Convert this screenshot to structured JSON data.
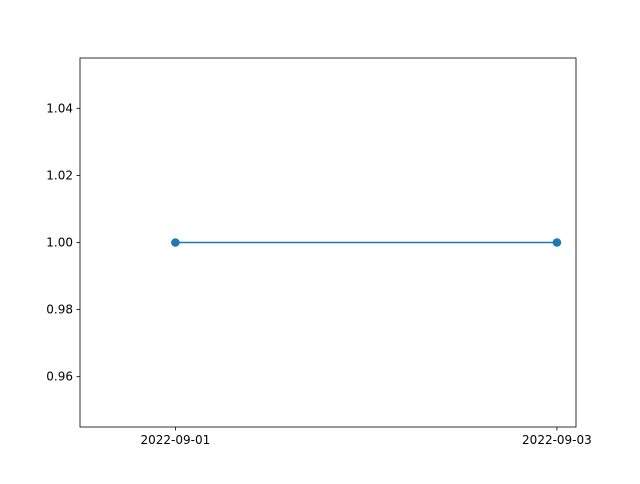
{
  "chart_data": {
    "type": "line",
    "title": "",
    "xlabel": "",
    "ylabel": "",
    "x": [
      "2022-09-01",
      "2022-09-03"
    ],
    "xticks": [
      "2022-09-01",
      "2022-09-03"
    ],
    "xlim": [
      "2022-08-31T12:00",
      "2022-09-03T02:24"
    ],
    "ylim": [
      0.945,
      1.055
    ],
    "yticks": [
      "0.96",
      "0.98",
      "1.00",
      "1.02",
      "1.04"
    ],
    "grid": false,
    "legend": "none",
    "series": [
      {
        "values": [
          1.0,
          1.0
        ],
        "color": "#1f77b4",
        "marker": "circle"
      }
    ]
  }
}
